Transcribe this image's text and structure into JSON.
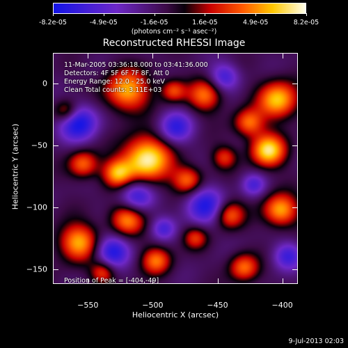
{
  "colorbar": {
    "ticks": [
      "-8.2e-05",
      "-4.9e-05",
      "-1.6e-05",
      "1.6e-05",
      "4.9e-05",
      "8.2e-05"
    ],
    "units": "(photons cm⁻² s⁻¹ asec⁻²)"
  },
  "title": "Reconstructed RHESSI Image",
  "info": {
    "time": "11-Mar-2005 03:36:18.000 to 03:41:36.000",
    "detectors": "Detectors: 4F 5F 6F 7F 8F, Att 0",
    "energy": "Energy Range: 12.0 - 25.0 keV",
    "clean": "Clean    Total counts: 3.11E+03",
    "peak": "Position of Peak = [-404,-49]"
  },
  "axes": {
    "xlabel": "Heliocentric X (arcsec)",
    "ylabel": "Heliocentric Y (arcsec)",
    "xticks": [
      -550,
      -500,
      -450,
      -400
    ],
    "yticks": [
      0,
      -50,
      -100,
      -150
    ],
    "xlim": [
      -577,
      -388
    ],
    "ylim": [
      -162,
      25
    ]
  },
  "timestamp": "9-Jul-2013 02:03"
}
